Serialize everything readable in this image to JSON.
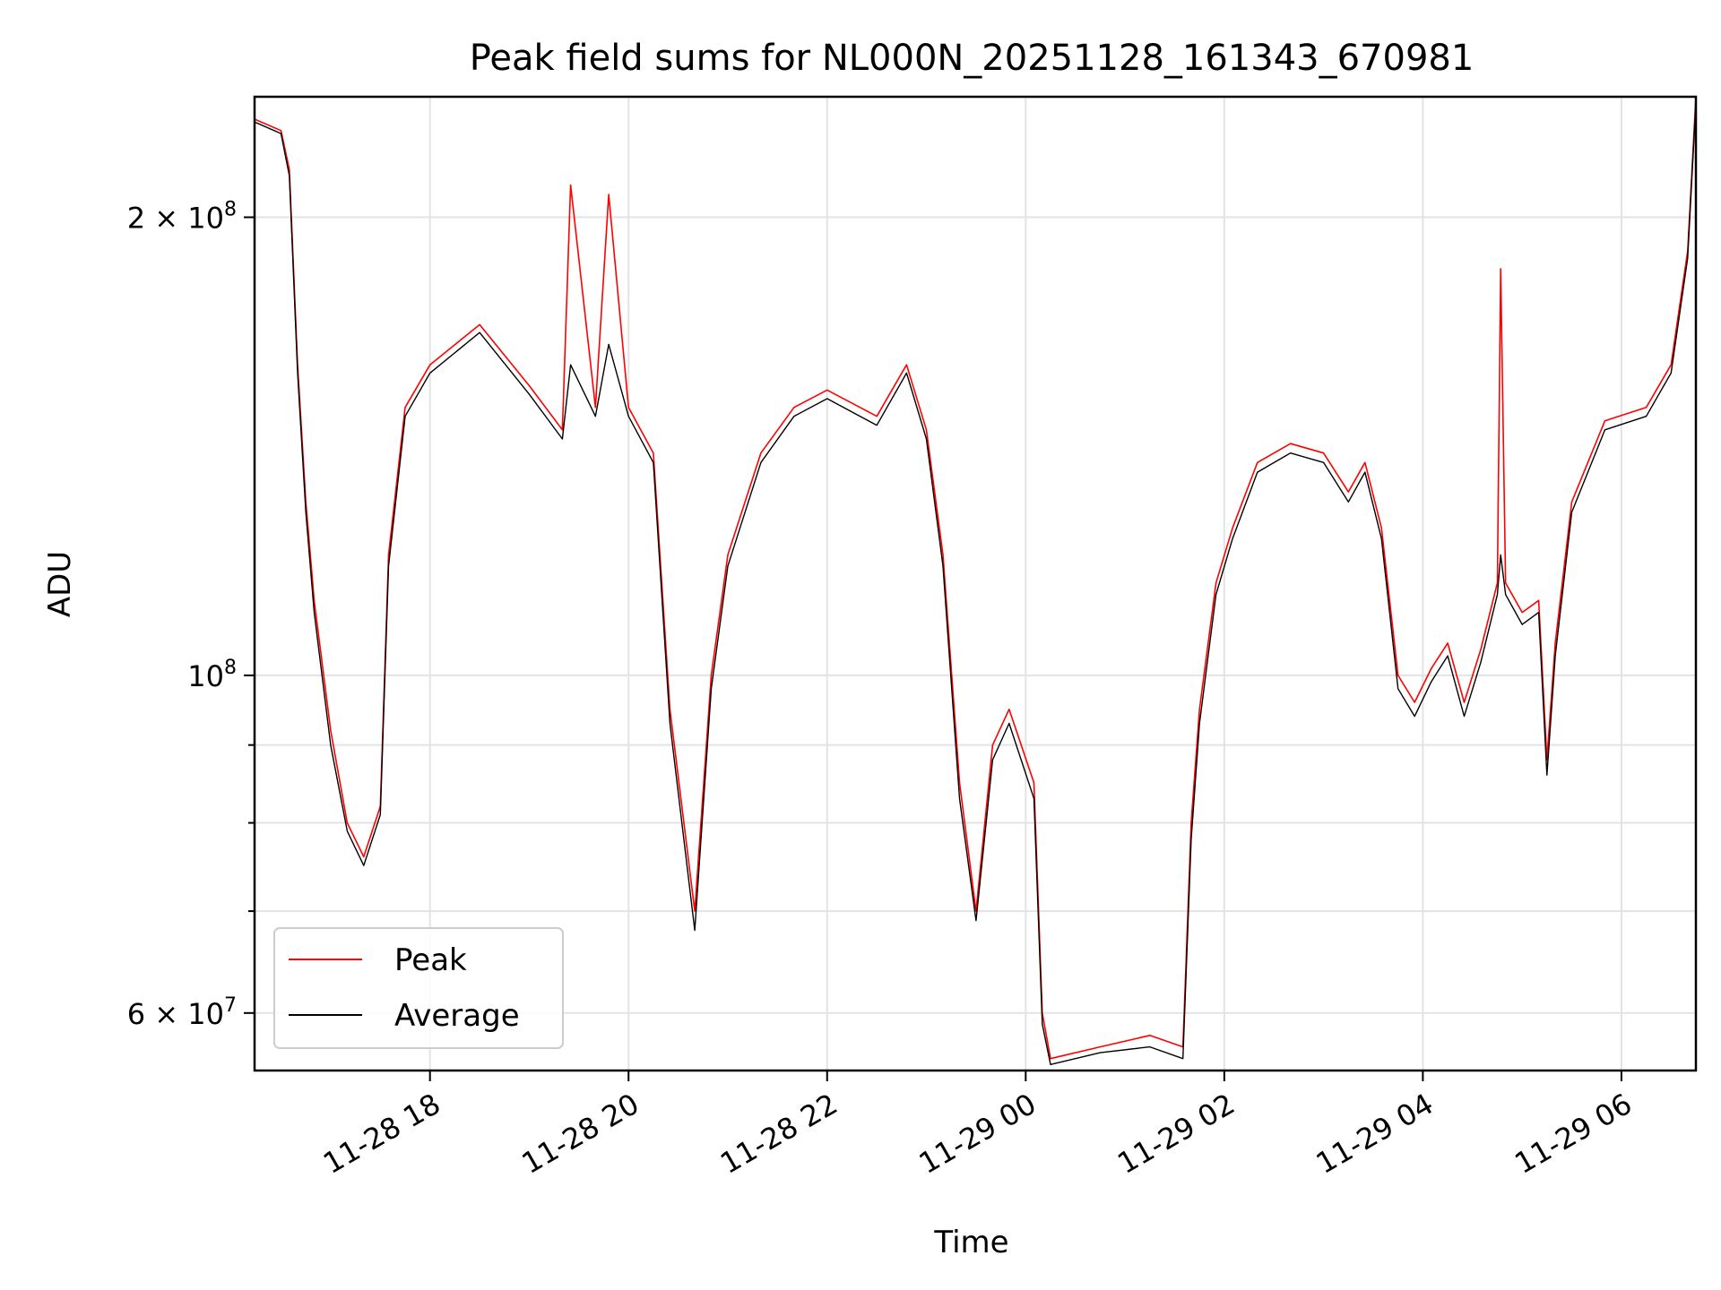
{
  "chart_data": {
    "type": "line",
    "title": "Peak field sums for NL000N_20251128_161343_670981",
    "xlabel": "Time",
    "ylabel": "ADU",
    "y_scale": "log",
    "grid": true,
    "legend_position": "lower-left",
    "xlim": [
      "2025-11-28 16:14",
      "2025-11-29 06:45"
    ],
    "ylim": [
      55000000,
      240000000
    ],
    "x_ticks": [
      {
        "value": "2025-11-28 18:00",
        "label": "11-28 18"
      },
      {
        "value": "2025-11-28 20:00",
        "label": "11-28 20"
      },
      {
        "value": "2025-11-28 22:00",
        "label": "11-28 22"
      },
      {
        "value": "2025-11-29 00:00",
        "label": "11-29 00"
      },
      {
        "value": "2025-11-29 02:00",
        "label": "11-29 02"
      },
      {
        "value": "2025-11-29 04:00",
        "label": "11-29 04"
      },
      {
        "value": "2025-11-29 06:00",
        "label": "11-29 06"
      }
    ],
    "y_major_ticks": [
      {
        "value": 60000000,
        "label_mantissa": "6 × 10",
        "label_exp": "7"
      },
      {
        "value": 100000000,
        "label_mantissa": "10",
        "label_exp": "8"
      },
      {
        "value": 200000000,
        "label_mantissa": "2 × 10",
        "label_exp": "8"
      }
    ],
    "y_minor_ticks": [
      70000000,
      80000000,
      90000000
    ],
    "series": [
      {
        "name": "Peak",
        "color": "#ff0000",
        "points": [
          [
            "2025-11-28 16:14",
            232000000
          ],
          [
            "2025-11-28 16:30",
            228000000
          ],
          [
            "2025-11-28 16:35",
            215000000
          ],
          [
            "2025-11-28 16:40",
            160000000
          ],
          [
            "2025-11-28 16:45",
            130000000
          ],
          [
            "2025-11-28 16:50",
            112000000
          ],
          [
            "2025-11-28 17:00",
            92000000
          ],
          [
            "2025-11-28 17:10",
            80000000
          ],
          [
            "2025-11-28 17:20",
            76000000
          ],
          [
            "2025-11-28 17:30",
            82000000
          ],
          [
            "2025-11-28 17:35",
            120000000
          ],
          [
            "2025-11-28 17:45",
            150000000
          ],
          [
            "2025-11-28 18:00",
            160000000
          ],
          [
            "2025-11-28 18:30",
            170000000
          ],
          [
            "2025-11-28 19:00",
            155000000
          ],
          [
            "2025-11-28 19:20",
            145000000
          ],
          [
            "2025-11-28 19:25",
            210000000
          ],
          [
            "2025-11-28 19:40",
            150000000
          ],
          [
            "2025-11-28 19:48",
            207000000
          ],
          [
            "2025-11-28 20:00",
            150000000
          ],
          [
            "2025-11-28 20:15",
            140000000
          ],
          [
            "2025-11-28 20:25",
            95000000
          ],
          [
            "2025-11-28 20:40",
            70000000
          ],
          [
            "2025-11-28 20:50",
            100000000
          ],
          [
            "2025-11-28 21:00",
            120000000
          ],
          [
            "2025-11-28 21:20",
            140000000
          ],
          [
            "2025-11-28 21:40",
            150000000
          ],
          [
            "2025-11-28 22:00",
            154000000
          ],
          [
            "2025-11-28 22:30",
            148000000
          ],
          [
            "2025-11-28 22:48",
            160000000
          ],
          [
            "2025-11-28 23:00",
            145000000
          ],
          [
            "2025-11-28 23:10",
            120000000
          ],
          [
            "2025-11-28 23:20",
            85000000
          ],
          [
            "2025-11-28 23:30",
            70000000
          ],
          [
            "2025-11-28 23:40",
            90000000
          ],
          [
            "2025-11-28 23:50",
            95000000
          ],
          [
            "2025-11-29 00:05",
            85000000
          ],
          [
            "2025-11-29 00:10",
            60000000
          ],
          [
            "2025-11-29 00:15",
            56000000
          ],
          [
            "2025-11-29 00:45",
            57000000
          ],
          [
            "2025-11-29 01:15",
            58000000
          ],
          [
            "2025-11-29 01:35",
            57000000
          ],
          [
            "2025-11-29 01:40",
            80000000
          ],
          [
            "2025-11-29 01:45",
            95000000
          ],
          [
            "2025-11-29 01:55",
            115000000
          ],
          [
            "2025-11-29 02:05",
            125000000
          ],
          [
            "2025-11-29 02:20",
            138000000
          ],
          [
            "2025-11-29 02:40",
            142000000
          ],
          [
            "2025-11-29 03:00",
            140000000
          ],
          [
            "2025-11-29 03:15",
            132000000
          ],
          [
            "2025-11-29 03:25",
            138000000
          ],
          [
            "2025-11-29 03:35",
            125000000
          ],
          [
            "2025-11-29 03:45",
            100000000
          ],
          [
            "2025-11-29 03:55",
            96000000
          ],
          [
            "2025-11-29 04:05",
            101000000
          ],
          [
            "2025-11-29 04:15",
            105000000
          ],
          [
            "2025-11-29 04:25",
            96000000
          ],
          [
            "2025-11-29 04:35",
            104000000
          ],
          [
            "2025-11-29 04:45",
            115000000
          ],
          [
            "2025-11-29 04:47",
            185000000
          ],
          [
            "2025-11-29 04:50",
            115000000
          ],
          [
            "2025-11-29 05:00",
            110000000
          ],
          [
            "2025-11-29 05:10",
            112000000
          ],
          [
            "2025-11-29 05:15",
            88000000
          ],
          [
            "2025-11-29 05:20",
            105000000
          ],
          [
            "2025-11-29 05:30",
            130000000
          ],
          [
            "2025-11-29 05:50",
            147000000
          ],
          [
            "2025-11-29 06:15",
            150000000
          ],
          [
            "2025-11-29 06:30",
            160000000
          ],
          [
            "2025-11-29 06:40",
            190000000
          ],
          [
            "2025-11-29 06:45",
            240000000
          ]
        ]
      },
      {
        "name": "Average",
        "color": "#000000",
        "points": [
          [
            "2025-11-28 16:14",
            231000000
          ],
          [
            "2025-11-28 16:30",
            227000000
          ],
          [
            "2025-11-28 16:35",
            213000000
          ],
          [
            "2025-11-28 16:40",
            158000000
          ],
          [
            "2025-11-28 16:45",
            128000000
          ],
          [
            "2025-11-28 16:50",
            110000000
          ],
          [
            "2025-11-28 17:00",
            90000000
          ],
          [
            "2025-11-28 17:10",
            79000000
          ],
          [
            "2025-11-28 17:20",
            75000000
          ],
          [
            "2025-11-28 17:30",
            81000000
          ],
          [
            "2025-11-28 17:35",
            118000000
          ],
          [
            "2025-11-28 17:45",
            148000000
          ],
          [
            "2025-11-28 18:00",
            158000000
          ],
          [
            "2025-11-28 18:30",
            168000000
          ],
          [
            "2025-11-28 19:00",
            153000000
          ],
          [
            "2025-11-28 19:20",
            143000000
          ],
          [
            "2025-11-28 19:25",
            160000000
          ],
          [
            "2025-11-28 19:40",
            148000000
          ],
          [
            "2025-11-28 19:48",
            165000000
          ],
          [
            "2025-11-28 20:00",
            148000000
          ],
          [
            "2025-11-28 20:15",
            138000000
          ],
          [
            "2025-11-28 20:25",
            93000000
          ],
          [
            "2025-11-28 20:40",
            68000000
          ],
          [
            "2025-11-28 20:50",
            98000000
          ],
          [
            "2025-11-28 21:00",
            118000000
          ],
          [
            "2025-11-28 21:20",
            138000000
          ],
          [
            "2025-11-28 21:40",
            148000000
          ],
          [
            "2025-11-28 22:00",
            152000000
          ],
          [
            "2025-11-28 22:30",
            146000000
          ],
          [
            "2025-11-28 22:48",
            158000000
          ],
          [
            "2025-11-28 23:00",
            143000000
          ],
          [
            "2025-11-28 23:10",
            118000000
          ],
          [
            "2025-11-28 23:20",
            83000000
          ],
          [
            "2025-11-28 23:30",
            69000000
          ],
          [
            "2025-11-28 23:40",
            88000000
          ],
          [
            "2025-11-28 23:50",
            93000000
          ],
          [
            "2025-11-29 00:05",
            83000000
          ],
          [
            "2025-11-29 00:10",
            59000000
          ],
          [
            "2025-11-29 00:15",
            55500000
          ],
          [
            "2025-11-29 00:45",
            56500000
          ],
          [
            "2025-11-29 01:15",
            57000000
          ],
          [
            "2025-11-29 01:35",
            56000000
          ],
          [
            "2025-11-29 01:40",
            78000000
          ],
          [
            "2025-11-29 01:45",
            93000000
          ],
          [
            "2025-11-29 01:55",
            113000000
          ],
          [
            "2025-11-29 02:05",
            123000000
          ],
          [
            "2025-11-29 02:20",
            136000000
          ],
          [
            "2025-11-29 02:40",
            140000000
          ],
          [
            "2025-11-29 03:00",
            138000000
          ],
          [
            "2025-11-29 03:15",
            130000000
          ],
          [
            "2025-11-29 03:25",
            136000000
          ],
          [
            "2025-11-29 03:35",
            123000000
          ],
          [
            "2025-11-29 03:45",
            98000000
          ],
          [
            "2025-11-29 03:55",
            94000000
          ],
          [
            "2025-11-29 04:05",
            99000000
          ],
          [
            "2025-11-29 04:15",
            103000000
          ],
          [
            "2025-11-29 04:25",
            94000000
          ],
          [
            "2025-11-29 04:35",
            102000000
          ],
          [
            "2025-11-29 04:45",
            113000000
          ],
          [
            "2025-11-29 04:47",
            120000000
          ],
          [
            "2025-11-29 04:50",
            113000000
          ],
          [
            "2025-11-29 05:00",
            108000000
          ],
          [
            "2025-11-29 05:10",
            110000000
          ],
          [
            "2025-11-29 05:15",
            86000000
          ],
          [
            "2025-11-29 05:20",
            103000000
          ],
          [
            "2025-11-29 05:30",
            128000000
          ],
          [
            "2025-11-29 05:50",
            145000000
          ],
          [
            "2025-11-29 06:15",
            148000000
          ],
          [
            "2025-11-29 06:30",
            158000000
          ],
          [
            "2025-11-29 06:40",
            188000000
          ],
          [
            "2025-11-29 06:45",
            238000000
          ]
        ]
      }
    ]
  }
}
